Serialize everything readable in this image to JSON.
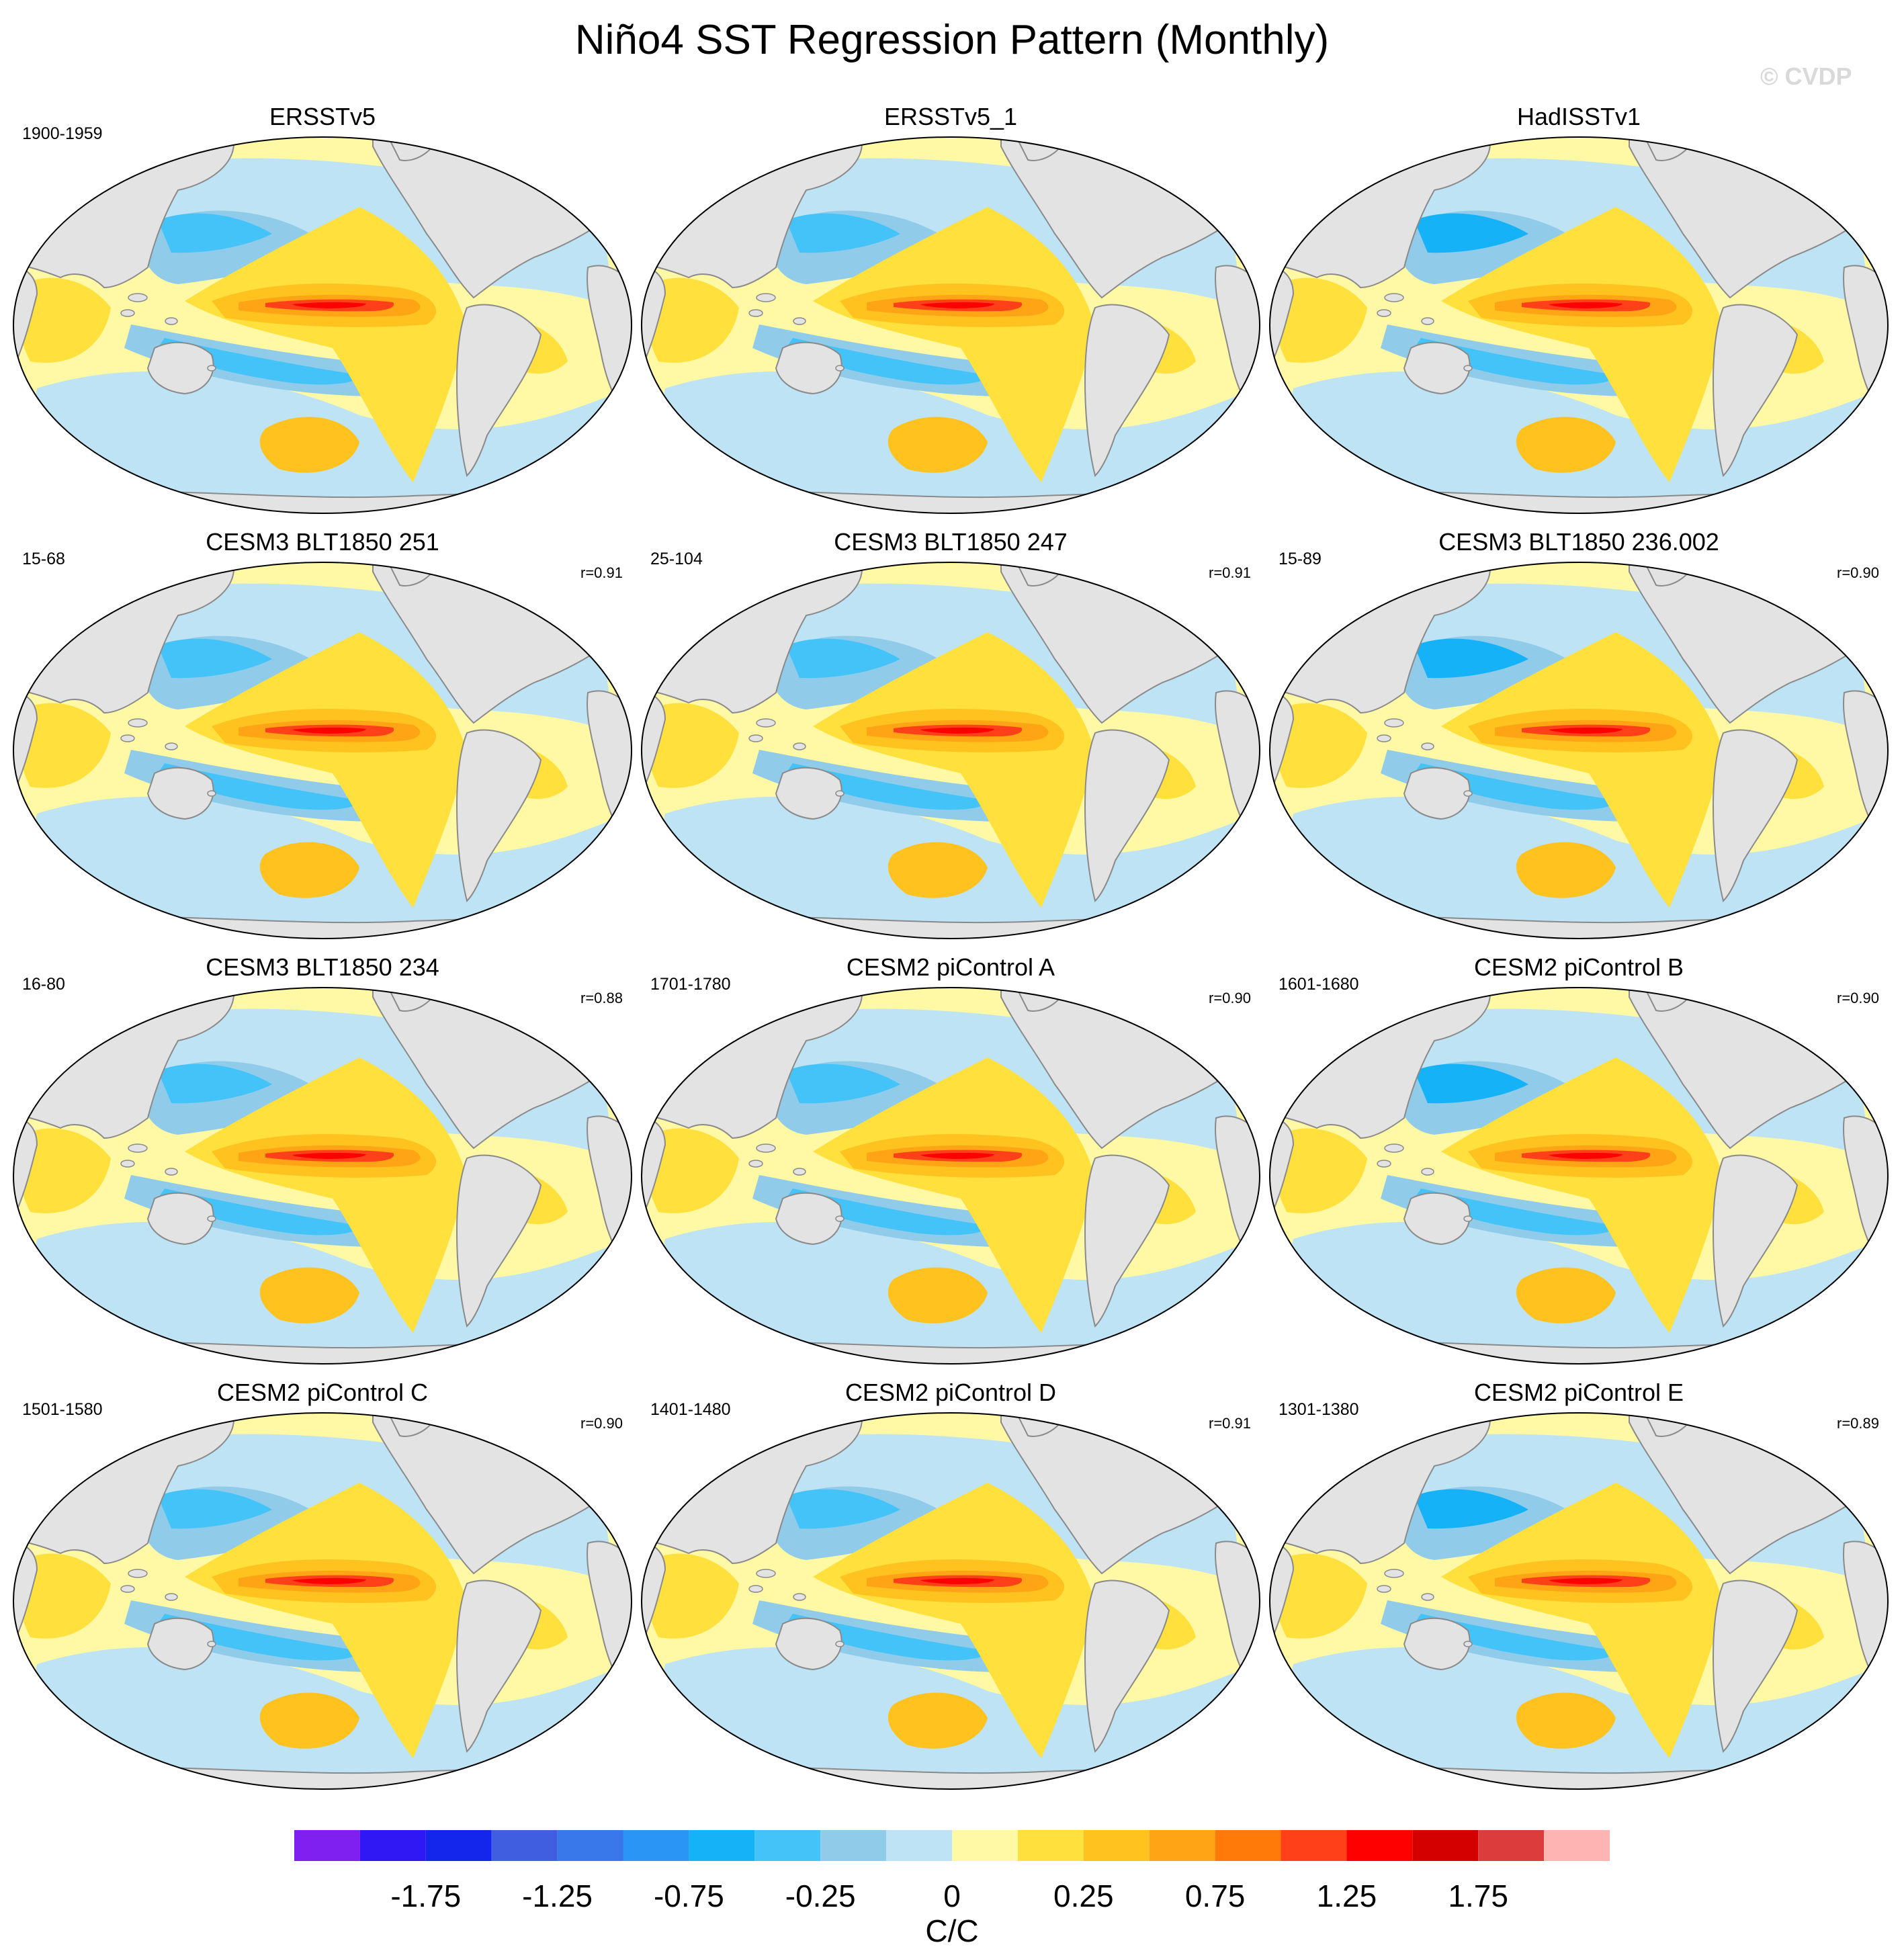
{
  "title": "Niño4 SST Regression Pattern (Monthly)",
  "watermark": "© CVDP",
  "panels": [
    {
      "title": "ERSSTv5",
      "period": "1900-1959",
      "r": ""
    },
    {
      "title": "ERSSTv5_1",
      "period": "",
      "r": ""
    },
    {
      "title": "HadISSTv1",
      "period": "",
      "r": ""
    },
    {
      "title": "CESM3 BLT1850 251",
      "period": "15-68",
      "r": "r=0.91"
    },
    {
      "title": "CESM3 BLT1850 247",
      "period": "25-104",
      "r": "r=0.91"
    },
    {
      "title": "CESM3 BLT1850 236.002",
      "period": "15-89",
      "r": "r=0.90"
    },
    {
      "title": "CESM3 BLT1850 234",
      "period": "16-80",
      "r": "r=0.88"
    },
    {
      "title": "CESM2 piControl A",
      "period": "1701-1780",
      "r": "r=0.90"
    },
    {
      "title": "CESM2 piControl B",
      "period": "1601-1680",
      "r": "r=0.90"
    },
    {
      "title": "CESM2 piControl C",
      "period": "1501-1580",
      "r": "r=0.90"
    },
    {
      "title": "CESM2 piControl D",
      "period": "1401-1480",
      "r": "r=0.91"
    },
    {
      "title": "CESM2 piControl E",
      "period": "1301-1380",
      "r": "r=0.89"
    }
  ],
  "colorbar": {
    "colors": [
      "#7f1ff0",
      "#3018f5",
      "#1426ec",
      "#3f5fe0",
      "#3878ea",
      "#2b95f6",
      "#15b2f8",
      "#44c3f8",
      "#90cbea",
      "#bde3f5",
      "#fff8a4",
      "#ffe03c",
      "#ffc21e",
      "#ffa414",
      "#ff7a08",
      "#ff4018",
      "#ff0000",
      "#d40000",
      "#dc3c3c",
      "#ffb4b4"
    ],
    "labels": [
      "-1.75",
      "-1.25",
      "-0.75",
      "-0.25",
      "0",
      "0.25",
      "0.75",
      "1.25",
      "1.75"
    ],
    "units": "C/C"
  }
}
